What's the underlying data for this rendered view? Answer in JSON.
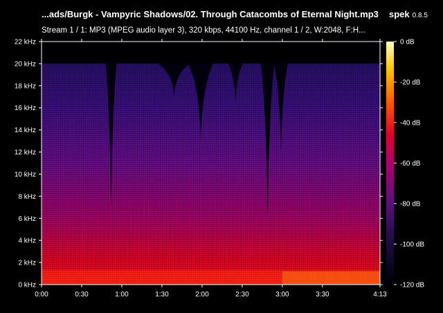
{
  "header": {
    "title": "...ads/Burgk - Vampyric Shadows/02. Through Catacombs of Eternal Night.mp3",
    "app_name": "spek",
    "app_version": "0.8.5",
    "stream_info": "Stream 1 / 1: MP3 (MPEG audio layer 3), 320 kbps, 44100 Hz, channel 1 / 2, W:2048, F:H..."
  },
  "chart_data": {
    "type": "heatmap",
    "title": "...ads/Burgk - Vampyric Shadows/02. Through Catacombs of Eternal Night.mp3",
    "subtitle": "Stream 1 / 1: MP3 (MPEG audio layer 3), 320 kbps, 44100 Hz, channel 1 / 2, W:2048, F:H...",
    "xlabel": "",
    "ylabel": "",
    "x_ticks": [
      "0:00",
      "0:30",
      "1:00",
      "1:30",
      "2:00",
      "2:30",
      "3:00",
      "3:30",
      "4:13"
    ],
    "x_tick_seconds": [
      0,
      30,
      60,
      90,
      120,
      150,
      180,
      210,
      253
    ],
    "xlim": [
      0,
      253
    ],
    "y_ticks": [
      "0 kHz",
      "2 kHz",
      "4 kHz",
      "6 kHz",
      "8 kHz",
      "10 kHz",
      "12 kHz",
      "14 kHz",
      "16 kHz",
      "18 kHz",
      "20 kHz",
      "22 kHz"
    ],
    "y_tick_khz": [
      0,
      2,
      4,
      6,
      8,
      10,
      12,
      14,
      16,
      18,
      20,
      22
    ],
    "ylim": [
      0,
      22
    ],
    "colorbar_ticks": [
      "0 dB",
      "-20 dB",
      "-40 dB",
      "-60 dB",
      "-80 dB",
      "-100 dB",
      "-120 dB"
    ],
    "colorbar_db": [
      0,
      -20,
      -40,
      -60,
      -80,
      -100,
      -120
    ],
    "colorbar_range": [
      -120,
      0
    ],
    "cutoff_khz": 20,
    "dropouts": [
      {
        "start_s": 48,
        "end_s": 56,
        "floor_khz": 7
      },
      {
        "start_s": 88,
        "end_s": 110,
        "floor_khz": 17
      },
      {
        "start_s": 110,
        "end_s": 128,
        "floor_khz": 13
      },
      {
        "start_s": 140,
        "end_s": 150,
        "floor_khz": 16.5
      },
      {
        "start_s": 164,
        "end_s": 174,
        "floor_khz": 6
      },
      {
        "start_s": 174,
        "end_s": 184,
        "floor_khz": 12
      }
    ],
    "colors": {
      "low": "#000004",
      "mid_low": "#3b0f70",
      "mid": "#8c2981",
      "mid_high": "#e5002a",
      "high": "#fcfdbf"
    }
  }
}
